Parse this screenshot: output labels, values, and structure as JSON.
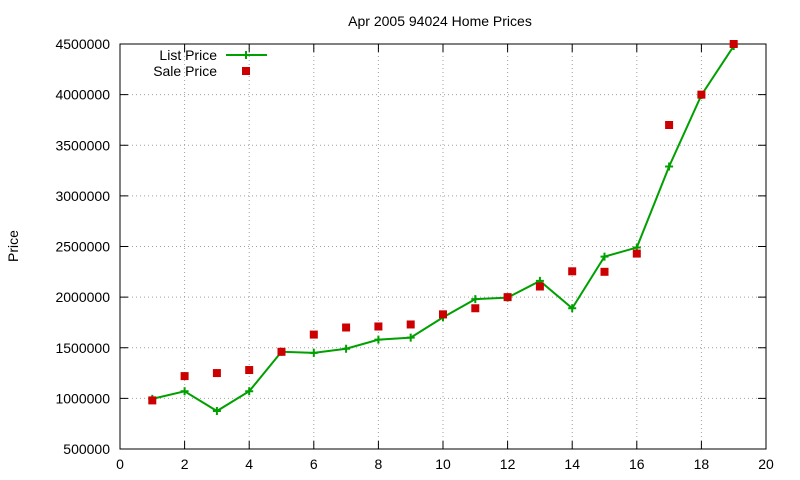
{
  "chart_data": {
    "type": "line",
    "title": "Apr 2005 94024 Home Prices",
    "xlabel": "",
    "ylabel": "Price",
    "xlim": [
      0,
      20
    ],
    "ylim": [
      500000,
      4500000
    ],
    "xticks": [
      0,
      2,
      4,
      6,
      8,
      10,
      12,
      14,
      16,
      18,
      20
    ],
    "yticks": [
      500000,
      1000000,
      1500000,
      2000000,
      2500000,
      3000000,
      3500000,
      4000000,
      4500000
    ],
    "grid": true,
    "legend_position": "top-left",
    "series": [
      {
        "name": "List Price",
        "style": "line+cross",
        "color": "#00a000",
        "x": [
          1,
          2,
          3,
          4,
          5,
          6,
          7,
          8,
          9,
          10,
          11,
          12,
          13,
          14,
          15,
          16,
          17,
          18,
          19
        ],
        "values": [
          995000,
          1070000,
          875000,
          1070000,
          1460000,
          1450000,
          1490000,
          1580000,
          1600000,
          1800000,
          1980000,
          1995000,
          2160000,
          1890000,
          2400000,
          2490000,
          3290000,
          3995000,
          4480000
        ]
      },
      {
        "name": "Sale Price",
        "style": "square",
        "color": "#cc0000",
        "x": [
          1,
          2,
          3,
          4,
          5,
          6,
          7,
          8,
          9,
          10,
          11,
          12,
          13,
          14,
          15,
          16,
          17,
          18,
          19
        ],
        "values": [
          980000,
          1220000,
          1250000,
          1280000,
          1460000,
          1630000,
          1700000,
          1710000,
          1730000,
          1830000,
          1890000,
          2000000,
          2105000,
          2255000,
          2250000,
          2430000,
          3700000,
          4000000,
          4500000
        ]
      }
    ]
  }
}
